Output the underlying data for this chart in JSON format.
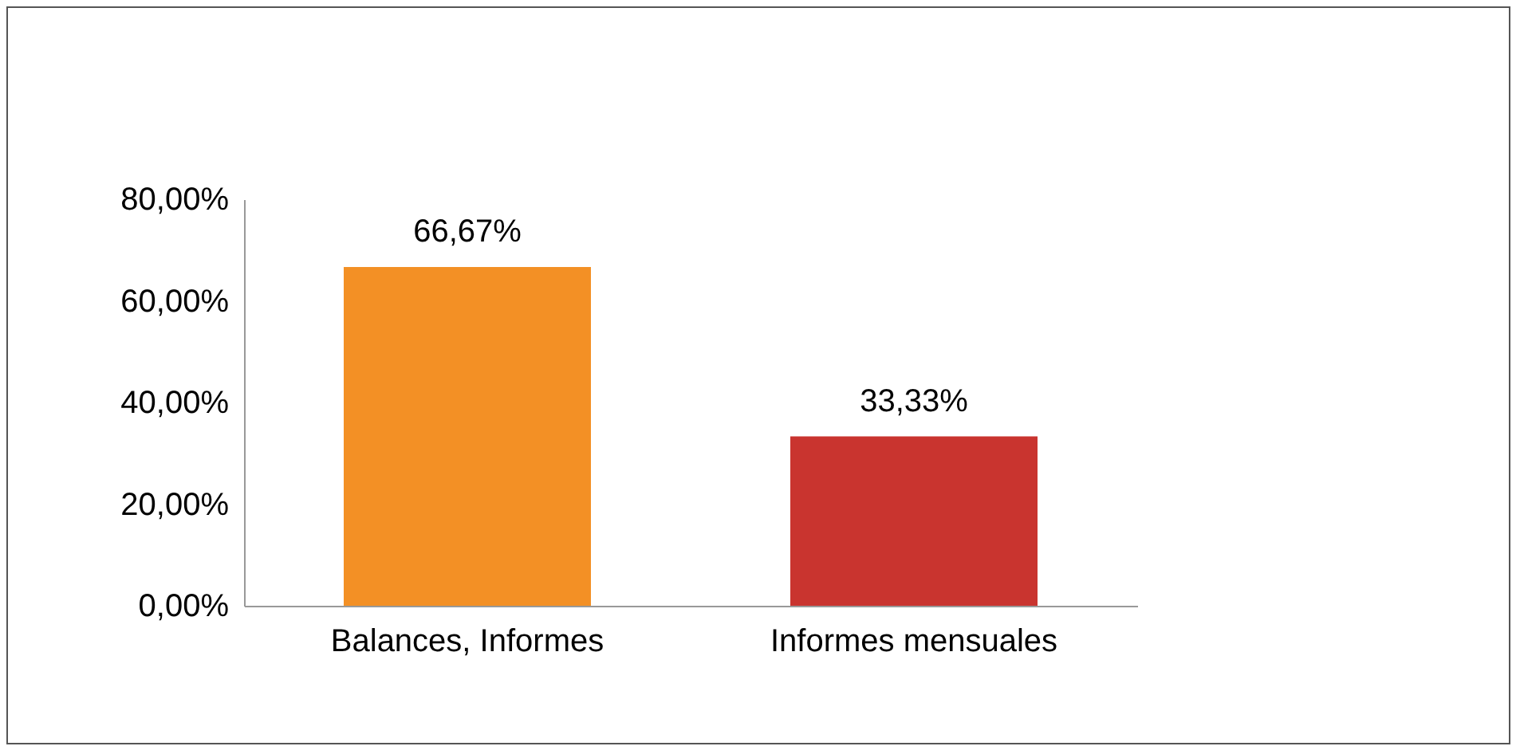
{
  "chart_data": {
    "type": "bar",
    "categories": [
      "Balances, Informes",
      "Informes mensuales"
    ],
    "values": [
      66.67,
      33.33
    ],
    "colors": [
      "#f39025",
      "#c9342f"
    ],
    "value_labels": [
      "66,67%",
      "33,33%"
    ],
    "ylim": [
      0,
      80
    ],
    "yticks": [
      {
        "value": 0,
        "label": "0,00%"
      },
      {
        "value": 20,
        "label": "20,00%"
      },
      {
        "value": 40,
        "label": "40,00%"
      },
      {
        "value": 60,
        "label": "60,00%"
      },
      {
        "value": 80,
        "label": "80,00%"
      }
    ]
  }
}
